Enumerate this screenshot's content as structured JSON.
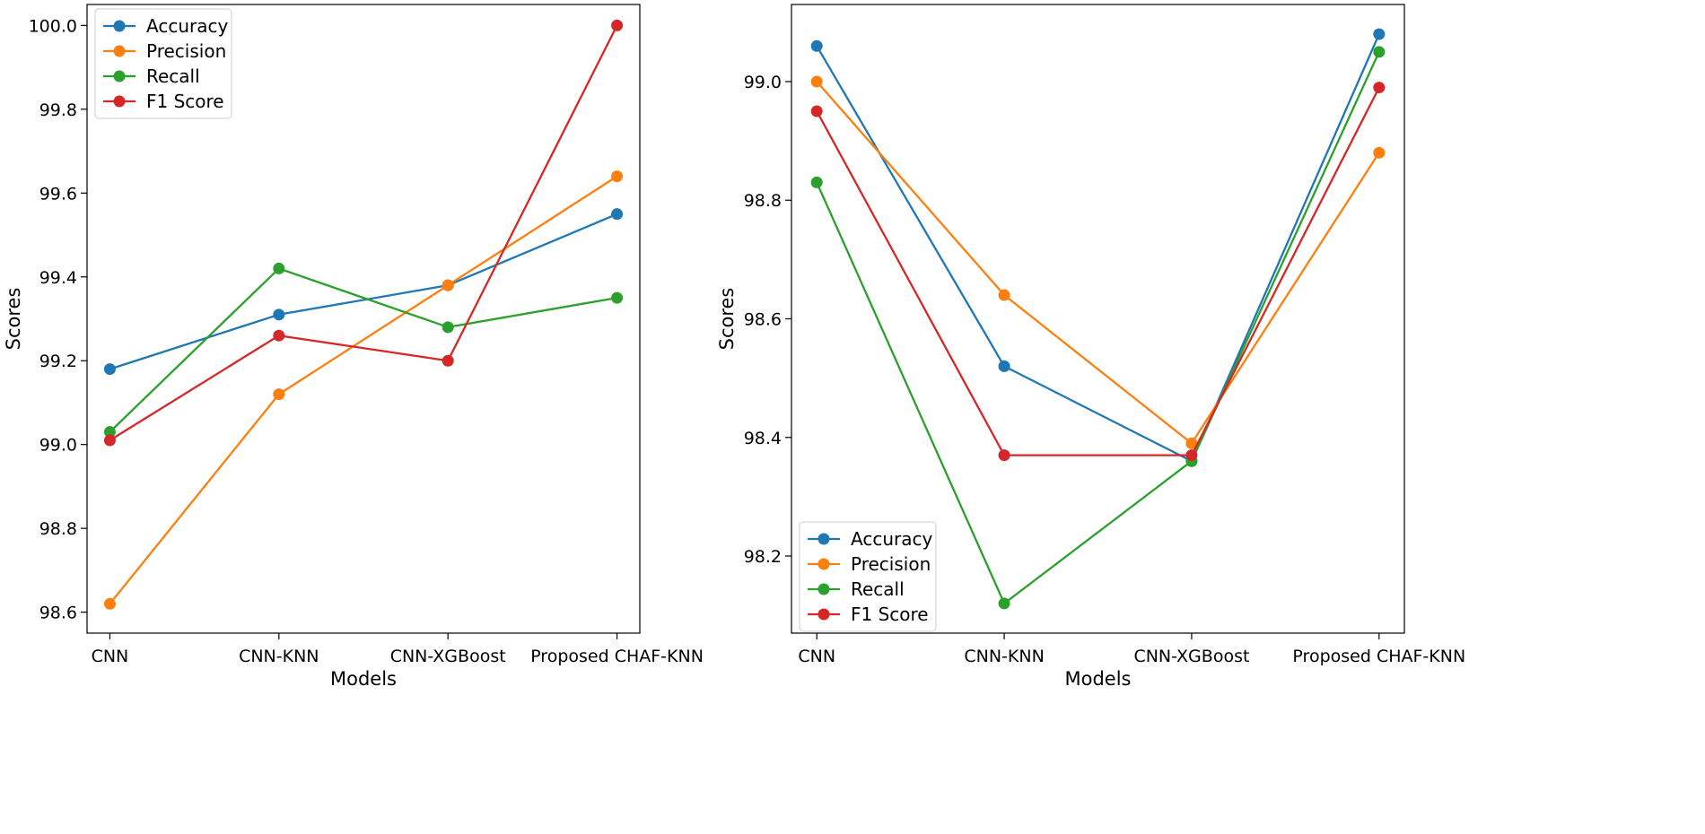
{
  "chart_data": [
    {
      "type": "line",
      "title": "",
      "xlabel": "Models",
      "ylabel": "Scores",
      "categories": [
        "CNN",
        "CNN-KNN",
        "CNN-XGBoost",
        "Proposed CHAF-KNN"
      ],
      "ylim": [
        98.55,
        100.05
      ],
      "yticks": [
        98.6,
        98.8,
        99.0,
        99.2,
        99.4,
        99.6,
        99.8,
        100.0
      ],
      "ytick_labels": [
        "98.6",
        "98.8",
        "99.0",
        "99.2",
        "99.4",
        "99.6",
        "99.8",
        "100.0"
      ],
      "grid": false,
      "legend_position": "top-left",
      "series": [
        {
          "name": "Accuracy",
          "color": "#1f77b4",
          "values": [
            99.18,
            99.31,
            99.38,
            99.55
          ]
        },
        {
          "name": "Precision",
          "color": "#ff7f0e",
          "values": [
            98.62,
            99.12,
            99.38,
            99.64
          ]
        },
        {
          "name": "Recall",
          "color": "#2ca02c",
          "values": [
            99.03,
            99.42,
            99.28,
            99.35
          ]
        },
        {
          "name": "F1 Score",
          "color": "#d62728",
          "values": [
            99.01,
            99.26,
            99.2,
            100.0
          ]
        }
      ]
    },
    {
      "type": "line",
      "title": "",
      "xlabel": "Models",
      "ylabel": "Scores",
      "categories": [
        "CNN",
        "CNN-KNN",
        "CNN-XGBoost",
        "Proposed CHAF-KNN"
      ],
      "ylim": [
        98.07,
        99.13
      ],
      "yticks": [
        98.2,
        98.4,
        98.6,
        98.8,
        99.0
      ],
      "ytick_labels": [
        "98.2",
        "98.4",
        "98.6",
        "98.8",
        "99.0"
      ],
      "grid": false,
      "legend_position": "bottom-left",
      "series": [
        {
          "name": "Accuracy",
          "color": "#1f77b4",
          "values": [
            99.06,
            98.52,
            98.36,
            99.08
          ]
        },
        {
          "name": "Precision",
          "color": "#ff7f0e",
          "values": [
            99.0,
            98.64,
            98.39,
            98.88
          ]
        },
        {
          "name": "Recall",
          "color": "#2ca02c",
          "values": [
            98.83,
            98.12,
            98.36,
            99.05
          ]
        },
        {
          "name": "F1 Score",
          "color": "#d62728",
          "values": [
            98.95,
            98.37,
            98.37,
            98.99
          ]
        }
      ]
    }
  ]
}
